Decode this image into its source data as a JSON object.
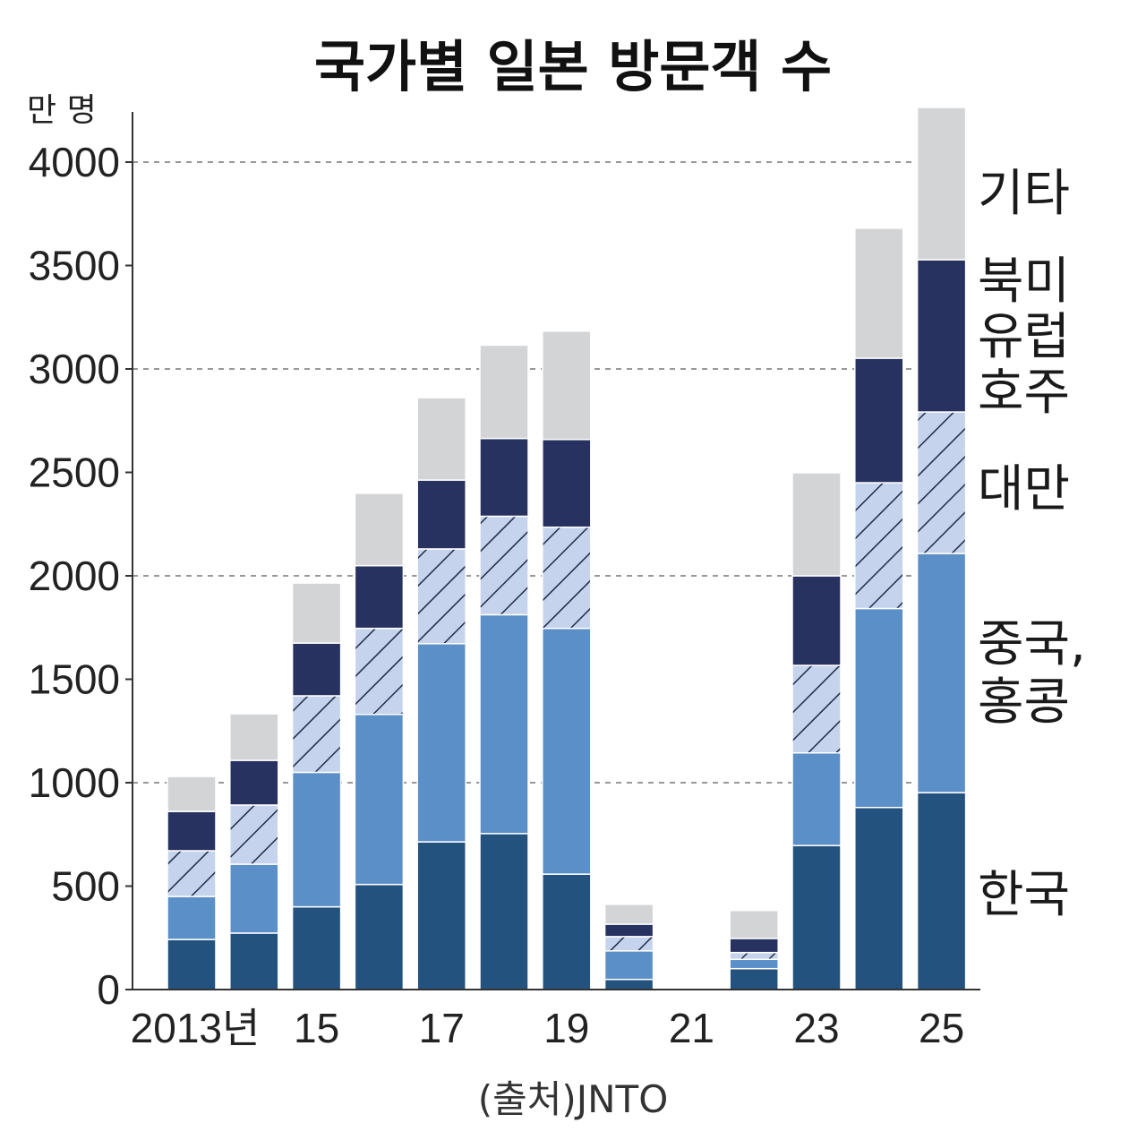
{
  "chart_data": {
    "type": "bar",
    "stacked": true,
    "title": "국가별 일본 방문객 수",
    "ylabel": "만 명",
    "xlabel": "",
    "source": "(출처)JNTO",
    "ylim": [
      0,
      4300
    ],
    "yticks": [
      0,
      500,
      1000,
      1500,
      2000,
      2500,
      3000,
      3500,
      4000
    ],
    "ytick_labels": [
      "0",
      "500",
      "1000",
      "1500",
      "2000",
      "2500",
      "3000",
      "3500",
      "4000"
    ],
    "grid": "dashed horizontal at 1000, 2000, 3000, 4000",
    "categories": [
      "2013",
      "2014",
      "2015",
      "2016",
      "2017",
      "2018",
      "2019",
      "2020",
      "2021",
      "2022",
      "2023",
      "2024",
      "2025"
    ],
    "xtick_labels": [
      {
        "category": "2013",
        "label": "2013년"
      },
      {
        "category": "2015",
        "label": "15"
      },
      {
        "category": "2017",
        "label": "17"
      },
      {
        "category": "2019",
        "label": "19"
      },
      {
        "category": "2021",
        "label": "21"
      },
      {
        "category": "2023",
        "label": "23"
      },
      {
        "category": "2025",
        "label": "25"
      }
    ],
    "legend_placement": "right (labels beside last bar)",
    "series": [
      {
        "name": "한국",
        "color": "#24527e",
        "pattern": "solid",
        "values": [
          242,
          273,
          400,
          508,
          714,
          754,
          558,
          49,
          0,
          101,
          696,
          880,
          952
        ]
      },
      {
        "name": "중국, 홍콩",
        "color": "#5b8fc8",
        "pattern": "solid",
        "values": [
          208,
          333,
          650,
          822,
          958,
          1058,
          1188,
          138,
          0,
          45,
          448,
          962,
          1156
        ]
      },
      {
        "name": "대만",
        "color": "#c5d3ec",
        "pattern": "hatched",
        "values": [
          221,
          286,
          370,
          416,
          458,
          476,
          489,
          69,
          0,
          33,
          423,
          608,
          684
        ]
      },
      {
        "name": "북미 유럽 호주",
        "color": "#283260",
        "pattern": "solid",
        "values": [
          190,
          216,
          255,
          303,
          333,
          376,
          424,
          60,
          0,
          68,
          433,
          602,
          736
        ]
      },
      {
        "name": "기타",
        "color": "#d3d4d6",
        "pattern": "solid",
        "values": [
          169,
          225,
          290,
          350,
          398,
          451,
          524,
          96,
          0,
          135,
          498,
          628,
          736
        ]
      }
    ]
  },
  "side_labels": {
    "other": [
      "기타"
    ],
    "west": [
      "북미",
      "유럽",
      "호주"
    ],
    "taiwan": [
      "대만"
    ],
    "china": [
      "중국,",
      "홍콩"
    ],
    "korea": [
      "한국"
    ]
  }
}
